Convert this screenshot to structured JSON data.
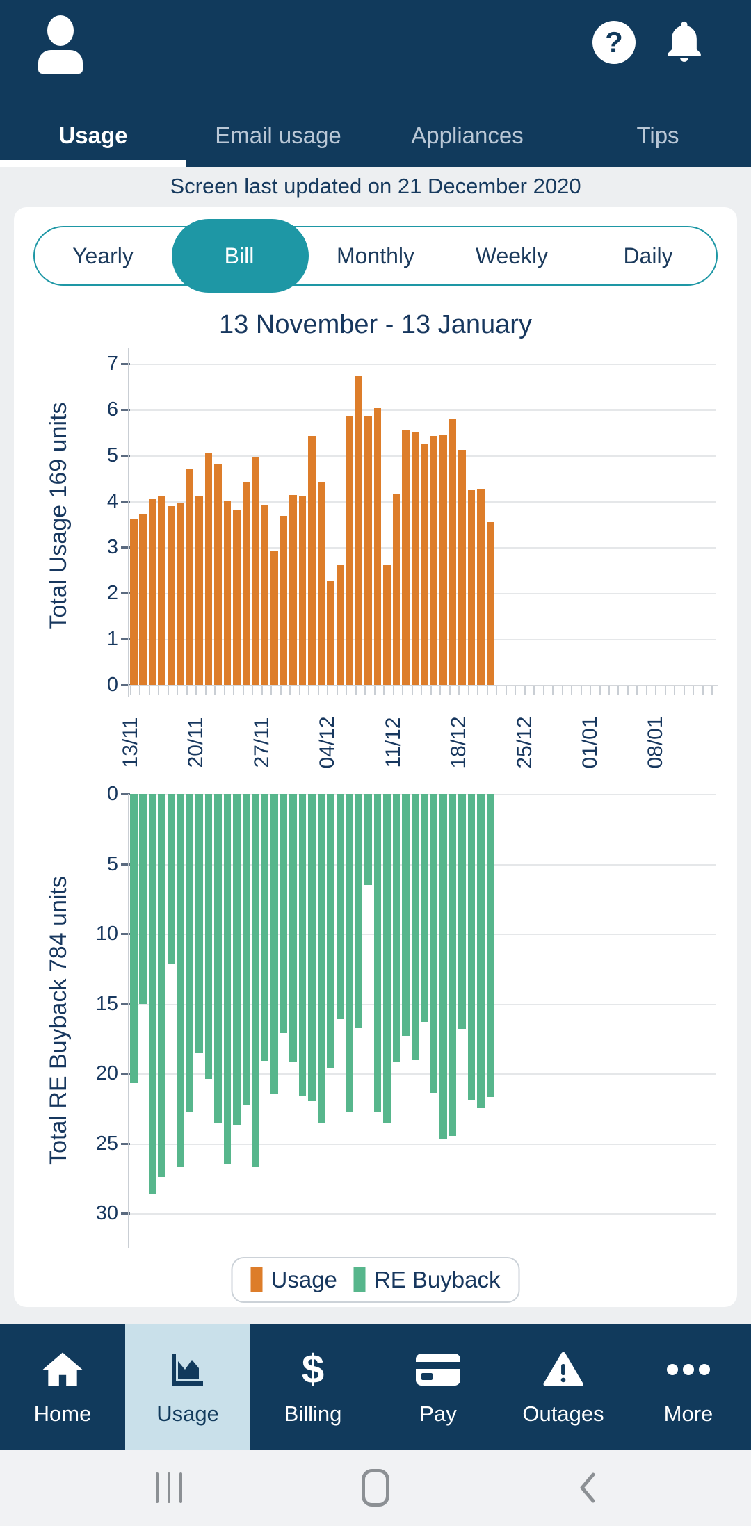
{
  "colors": {
    "navy": "#113a5c",
    "teal": "#1e97a5",
    "usage_orange": "#dd7d2a",
    "buyback_green": "#57b68c",
    "selected_nav_bg": "#c9e0ea",
    "content_bg": "#edeff1"
  },
  "header": {
    "icons": [
      "profile-icon",
      "help-icon",
      "notifications-bell-icon"
    ],
    "help_glyph": "?",
    "tabs": [
      {
        "label": "Usage",
        "selected": true
      },
      {
        "label": "Email usage",
        "selected": false
      },
      {
        "label": "Appliances",
        "selected": false
      },
      {
        "label": "Tips",
        "selected": false
      }
    ]
  },
  "status_text": "Screen last updated on 21 December 2020",
  "period_selector": {
    "options": [
      "Yearly",
      "Bill",
      "Monthly",
      "Weekly",
      "Daily"
    ],
    "selected": "Bill"
  },
  "chart_data": {
    "type": "bar",
    "title": "13 November - 13 January",
    "x_tick_labels": [
      "13/11",
      "20/11",
      "27/11",
      "04/12",
      "11/12",
      "18/12",
      "25/12",
      "01/01",
      "08/01"
    ],
    "x_range_days": 62,
    "grid": true,
    "series": [
      {
        "name": "Usage",
        "axis_label": "Total Usage 169 units",
        "color": "#dd7d2a",
        "ylim": [
          0,
          7
        ],
        "y_ticks": [
          0,
          1,
          2,
          3,
          4,
          5,
          6,
          7
        ],
        "inverted": false,
        "values": [
          3.62,
          3.72,
          4.05,
          4.12,
          3.9,
          3.95,
          4.7,
          4.1,
          5.05,
          4.8,
          4.02,
          3.8,
          4.42,
          4.97,
          3.92,
          2.93,
          3.68,
          4.13,
          4.1,
          5.42,
          4.42,
          2.28,
          2.6,
          5.87,
          6.73,
          5.85,
          6.03,
          2.62,
          4.15,
          5.55,
          5.5,
          5.25,
          5.42,
          5.45,
          5.8,
          5.12,
          4.25,
          4.28,
          3.55
        ]
      },
      {
        "name": "RE Buyback",
        "axis_label": "Total RE Buyback 784 units",
        "color": "#57b68c",
        "ylim": [
          0,
          30
        ],
        "y_ticks": [
          0,
          5,
          10,
          15,
          20,
          25,
          30
        ],
        "inverted": true,
        "values": [
          20.7,
          15.0,
          28.6,
          27.4,
          12.2,
          26.7,
          22.8,
          18.5,
          20.4,
          23.6,
          26.5,
          23.7,
          22.3,
          26.7,
          19.1,
          21.5,
          17.1,
          19.2,
          21.6,
          22.0,
          23.6,
          19.6,
          16.1,
          22.8,
          16.7,
          6.5,
          22.8,
          23.6,
          19.2,
          17.3,
          19.0,
          16.3,
          21.4,
          24.7,
          24.5,
          16.8,
          21.9,
          22.5,
          21.7
        ]
      }
    ],
    "legend": {
      "position": "bottom",
      "entries": [
        "Usage",
        "RE Buyback"
      ]
    }
  },
  "bottom_nav": {
    "items": [
      {
        "label": "Home",
        "icon": "home-icon",
        "selected": false
      },
      {
        "label": "Usage",
        "icon": "usage-chart-icon",
        "selected": true
      },
      {
        "label": "Billing",
        "icon": "dollar-icon",
        "glyph": "$",
        "selected": false
      },
      {
        "label": "Pay",
        "icon": "credit-card-icon",
        "selected": false
      },
      {
        "label": "Outages",
        "icon": "warning-icon",
        "selected": false
      },
      {
        "label": "More",
        "icon": "more-dots-icon",
        "selected": false
      }
    ]
  },
  "android_nav": {
    "icons": [
      "recent-apps-icon",
      "home-button-icon",
      "back-icon"
    ]
  }
}
